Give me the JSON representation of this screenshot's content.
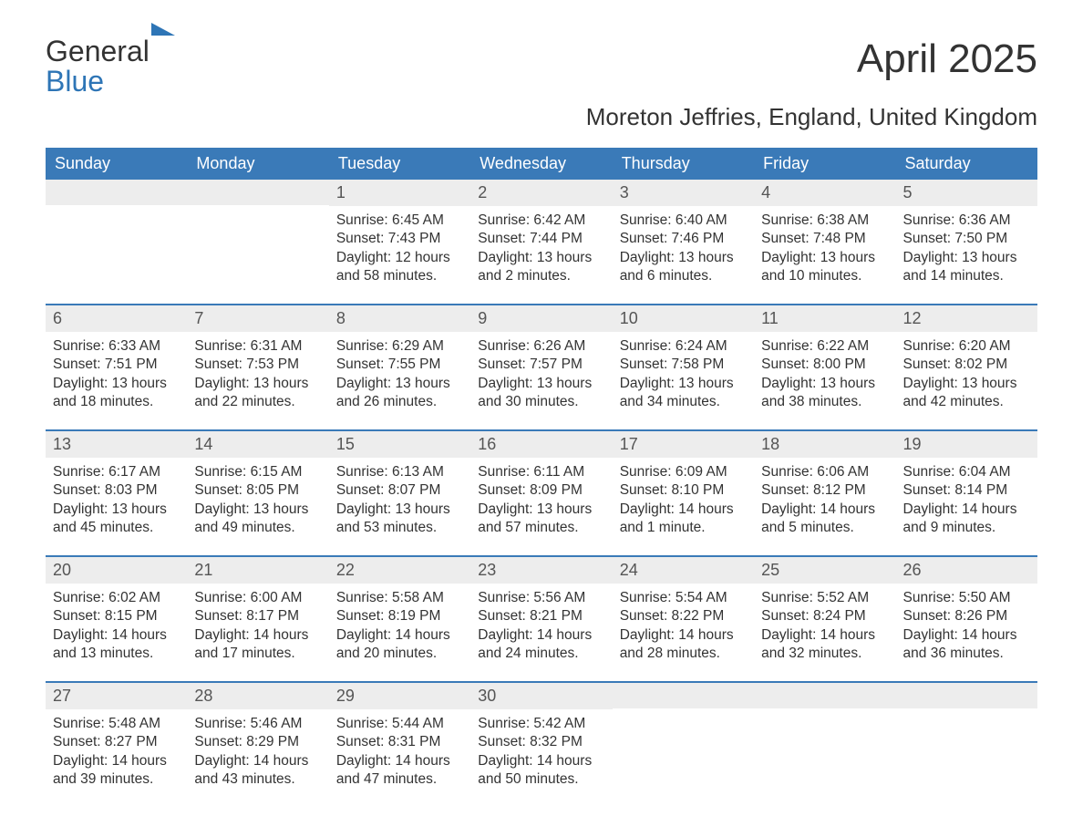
{
  "colors": {
    "header_bg": "#3a7ab8",
    "header_text": "#ffffff",
    "daynum_bg": "#ededed",
    "daynum_text": "#555555",
    "body_text": "#333333",
    "week_divider": "#3a7ab8",
    "page_bg": "#ffffff",
    "logo_blue": "#2e75b6"
  },
  "typography": {
    "font_family": "Arial, Helvetica, sans-serif",
    "month_title_size": 44,
    "subtitle_size": 26,
    "dow_size": 18,
    "daynum_size": 18,
    "body_size": 15.5
  },
  "logo": {
    "text_general": "General",
    "text_blue": "Blue",
    "icon_name": "arrow-right-icon"
  },
  "title": "April 2025",
  "subtitle": "Moreton Jeffries, England, United Kingdom",
  "days_of_week": [
    "Sunday",
    "Monday",
    "Tuesday",
    "Wednesday",
    "Thursday",
    "Friday",
    "Saturday"
  ],
  "calendar": {
    "type": "table",
    "columns": 7,
    "leading_blanks": 2,
    "days": [
      {
        "n": "1",
        "sunrise": "Sunrise: 6:45 AM",
        "sunset": "Sunset: 7:43 PM",
        "day1": "Daylight: 12 hours",
        "day2": "and 58 minutes."
      },
      {
        "n": "2",
        "sunrise": "Sunrise: 6:42 AM",
        "sunset": "Sunset: 7:44 PM",
        "day1": "Daylight: 13 hours",
        "day2": "and 2 minutes."
      },
      {
        "n": "3",
        "sunrise": "Sunrise: 6:40 AM",
        "sunset": "Sunset: 7:46 PM",
        "day1": "Daylight: 13 hours",
        "day2": "and 6 minutes."
      },
      {
        "n": "4",
        "sunrise": "Sunrise: 6:38 AM",
        "sunset": "Sunset: 7:48 PM",
        "day1": "Daylight: 13 hours",
        "day2": "and 10 minutes."
      },
      {
        "n": "5",
        "sunrise": "Sunrise: 6:36 AM",
        "sunset": "Sunset: 7:50 PM",
        "day1": "Daylight: 13 hours",
        "day2": "and 14 minutes."
      },
      {
        "n": "6",
        "sunrise": "Sunrise: 6:33 AM",
        "sunset": "Sunset: 7:51 PM",
        "day1": "Daylight: 13 hours",
        "day2": "and 18 minutes."
      },
      {
        "n": "7",
        "sunrise": "Sunrise: 6:31 AM",
        "sunset": "Sunset: 7:53 PM",
        "day1": "Daylight: 13 hours",
        "day2": "and 22 minutes."
      },
      {
        "n": "8",
        "sunrise": "Sunrise: 6:29 AM",
        "sunset": "Sunset: 7:55 PM",
        "day1": "Daylight: 13 hours",
        "day2": "and 26 minutes."
      },
      {
        "n": "9",
        "sunrise": "Sunrise: 6:26 AM",
        "sunset": "Sunset: 7:57 PM",
        "day1": "Daylight: 13 hours",
        "day2": "and 30 minutes."
      },
      {
        "n": "10",
        "sunrise": "Sunrise: 6:24 AM",
        "sunset": "Sunset: 7:58 PM",
        "day1": "Daylight: 13 hours",
        "day2": "and 34 minutes."
      },
      {
        "n": "11",
        "sunrise": "Sunrise: 6:22 AM",
        "sunset": "Sunset: 8:00 PM",
        "day1": "Daylight: 13 hours",
        "day2": "and 38 minutes."
      },
      {
        "n": "12",
        "sunrise": "Sunrise: 6:20 AM",
        "sunset": "Sunset: 8:02 PM",
        "day1": "Daylight: 13 hours",
        "day2": "and 42 minutes."
      },
      {
        "n": "13",
        "sunrise": "Sunrise: 6:17 AM",
        "sunset": "Sunset: 8:03 PM",
        "day1": "Daylight: 13 hours",
        "day2": "and 45 minutes."
      },
      {
        "n": "14",
        "sunrise": "Sunrise: 6:15 AM",
        "sunset": "Sunset: 8:05 PM",
        "day1": "Daylight: 13 hours",
        "day2": "and 49 minutes."
      },
      {
        "n": "15",
        "sunrise": "Sunrise: 6:13 AM",
        "sunset": "Sunset: 8:07 PM",
        "day1": "Daylight: 13 hours",
        "day2": "and 53 minutes."
      },
      {
        "n": "16",
        "sunrise": "Sunrise: 6:11 AM",
        "sunset": "Sunset: 8:09 PM",
        "day1": "Daylight: 13 hours",
        "day2": "and 57 minutes."
      },
      {
        "n": "17",
        "sunrise": "Sunrise: 6:09 AM",
        "sunset": "Sunset: 8:10 PM",
        "day1": "Daylight: 14 hours",
        "day2": "and 1 minute."
      },
      {
        "n": "18",
        "sunrise": "Sunrise: 6:06 AM",
        "sunset": "Sunset: 8:12 PM",
        "day1": "Daylight: 14 hours",
        "day2": "and 5 minutes."
      },
      {
        "n": "19",
        "sunrise": "Sunrise: 6:04 AM",
        "sunset": "Sunset: 8:14 PM",
        "day1": "Daylight: 14 hours",
        "day2": "and 9 minutes."
      },
      {
        "n": "20",
        "sunrise": "Sunrise: 6:02 AM",
        "sunset": "Sunset: 8:15 PM",
        "day1": "Daylight: 14 hours",
        "day2": "and 13 minutes."
      },
      {
        "n": "21",
        "sunrise": "Sunrise: 6:00 AM",
        "sunset": "Sunset: 8:17 PM",
        "day1": "Daylight: 14 hours",
        "day2": "and 17 minutes."
      },
      {
        "n": "22",
        "sunrise": "Sunrise: 5:58 AM",
        "sunset": "Sunset: 8:19 PM",
        "day1": "Daylight: 14 hours",
        "day2": "and 20 minutes."
      },
      {
        "n": "23",
        "sunrise": "Sunrise: 5:56 AM",
        "sunset": "Sunset: 8:21 PM",
        "day1": "Daylight: 14 hours",
        "day2": "and 24 minutes."
      },
      {
        "n": "24",
        "sunrise": "Sunrise: 5:54 AM",
        "sunset": "Sunset: 8:22 PM",
        "day1": "Daylight: 14 hours",
        "day2": "and 28 minutes."
      },
      {
        "n": "25",
        "sunrise": "Sunrise: 5:52 AM",
        "sunset": "Sunset: 8:24 PM",
        "day1": "Daylight: 14 hours",
        "day2": "and 32 minutes."
      },
      {
        "n": "26",
        "sunrise": "Sunrise: 5:50 AM",
        "sunset": "Sunset: 8:26 PM",
        "day1": "Daylight: 14 hours",
        "day2": "and 36 minutes."
      },
      {
        "n": "27",
        "sunrise": "Sunrise: 5:48 AM",
        "sunset": "Sunset: 8:27 PM",
        "day1": "Daylight: 14 hours",
        "day2": "and 39 minutes."
      },
      {
        "n": "28",
        "sunrise": "Sunrise: 5:46 AM",
        "sunset": "Sunset: 8:29 PM",
        "day1": "Daylight: 14 hours",
        "day2": "and 43 minutes."
      },
      {
        "n": "29",
        "sunrise": "Sunrise: 5:44 AM",
        "sunset": "Sunset: 8:31 PM",
        "day1": "Daylight: 14 hours",
        "day2": "and 47 minutes."
      },
      {
        "n": "30",
        "sunrise": "Sunrise: 5:42 AM",
        "sunset": "Sunset: 8:32 PM",
        "day1": "Daylight: 14 hours",
        "day2": "and 50 minutes."
      }
    ]
  }
}
